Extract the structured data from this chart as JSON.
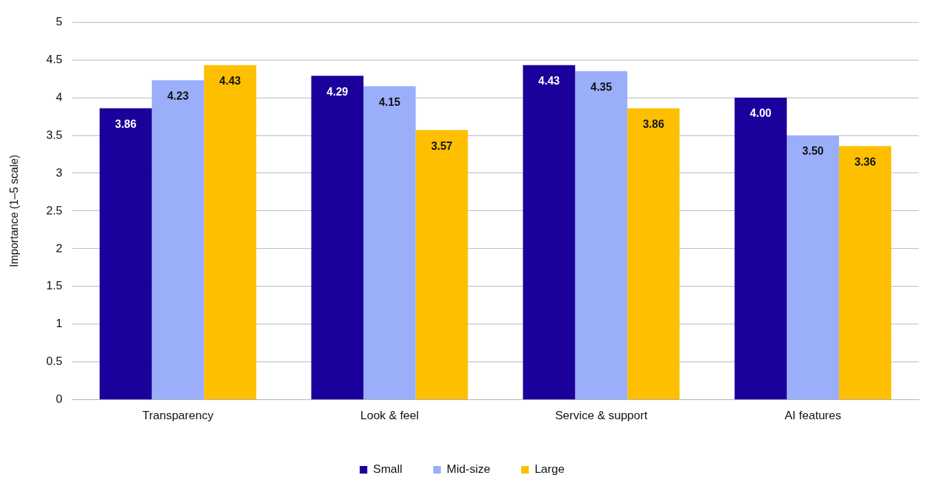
{
  "chart_data": {
    "type": "bar",
    "ylabel": "Importance (1–5 scale)",
    "categories": [
      "Transparency",
      "Look & feel",
      "Service & support",
      "AI features"
    ],
    "series": [
      {
        "name": "Small",
        "color": "#1c009c",
        "values": [
          3.86,
          4.29,
          4.43,
          4.0
        ],
        "value_labels": [
          "3.86",
          "4.29",
          "4.43",
          "4.00"
        ]
      },
      {
        "name": "Mid-size",
        "color": "#9aaefa",
        "values": [
          4.23,
          4.15,
          4.35,
          3.5
        ],
        "value_labels": [
          "4.23",
          "4.15",
          "4.35",
          "3.50"
        ]
      },
      {
        "name": "Large",
        "color": "#fdbf00",
        "values": [
          4.43,
          3.57,
          3.86,
          3.36
        ],
        "value_labels": [
          "4.43",
          "3.57",
          "3.86",
          "3.36"
        ]
      }
    ],
    "ylim": [
      0,
      5
    ],
    "yticks": [
      0,
      0.5,
      1,
      1.5,
      2,
      2.5,
      3,
      3.5,
      4,
      4.5,
      5
    ],
    "grid": "y",
    "legend": "bottom"
  }
}
